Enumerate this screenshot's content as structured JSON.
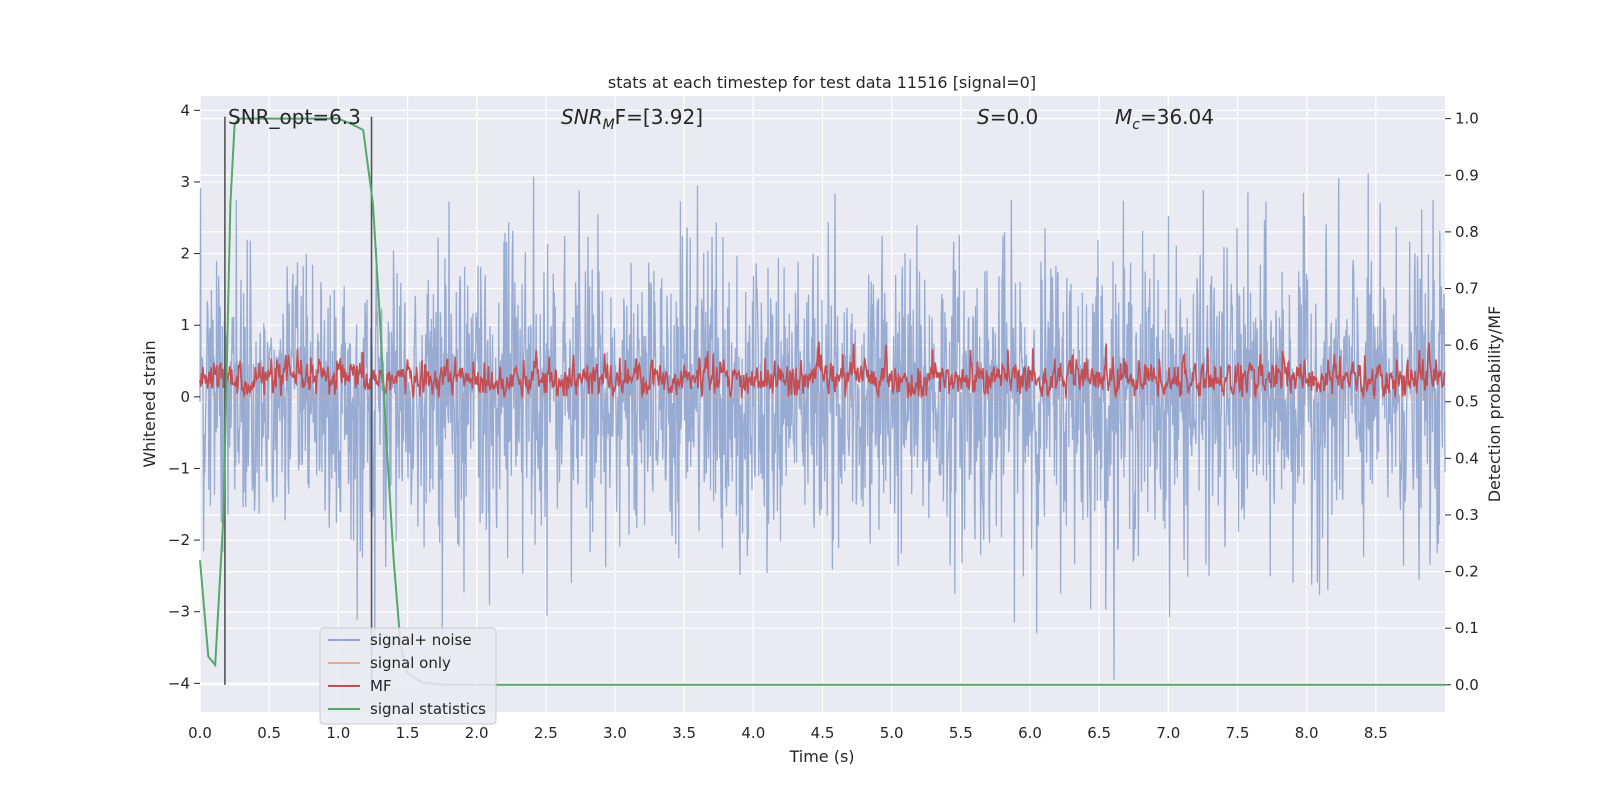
{
  "chart_data": {
    "type": "line",
    "title": "stats at each timestep for test data 11516 [signal=0]",
    "xlabel": "Time (s)",
    "ylabel": "Whitened strain",
    "ylabel_right": "Detection probability/MF",
    "xlim": [
      0.0,
      9.0
    ],
    "ylim": [
      -4.4,
      4.2
    ],
    "ylim_right": [
      -0.048,
      1.04
    ],
    "x_ticks": [
      "0.0",
      "0.5",
      "1.0",
      "1.5",
      "2.0",
      "2.5",
      "3.0",
      "3.5",
      "4.0",
      "4.5",
      "5.0",
      "5.5",
      "6.0",
      "6.5",
      "7.0",
      "7.5",
      "8.0",
      "8.5"
    ],
    "y_ticks": [
      "−4",
      "−3",
      "−2",
      "−1",
      "0",
      "1",
      "2",
      "3",
      "4"
    ],
    "y_right_ticks": [
      "0.0",
      "0.1",
      "0.2",
      "0.3",
      "0.4",
      "0.5",
      "0.6",
      "0.7",
      "0.8",
      "0.9",
      "1.0"
    ],
    "grid": true,
    "legend_position": "lower-left",
    "annotations": {
      "snr_opt": "SNR_opt=6.3",
      "snr_mf_base": "SNR",
      "snr_mf_sub": "M",
      "snr_mf_rest": "F=[3.92]",
      "s_italic": "S",
      "s_value": "=0.0",
      "mc_base": "M",
      "mc_sub": "c",
      "mc_value": "=36.04"
    },
    "vertical_markers": [
      0.18,
      1.24
    ],
    "series": [
      {
        "name": "signal+ noise",
        "color": "#92a8d1",
        "axis": "left",
        "description_range": [
          -3.9,
          3.9
        ],
        "envelope_rms": 1.0
      },
      {
        "name": "signal only",
        "color": "#e8a48c",
        "axis": "left",
        "values": "zero"
      },
      {
        "name": "MF",
        "color": "#c44e52",
        "axis": "right",
        "range": [
          0.5,
          0.63
        ],
        "mean": 0.54
      },
      {
        "name": "signal statistics",
        "color": "#55a868",
        "axis": "right",
        "x": [
          0.0,
          0.06,
          0.11,
          0.17,
          0.22,
          0.25,
          0.28,
          1.0,
          1.05,
          1.1,
          1.18,
          1.25,
          1.3,
          1.35,
          1.4,
          1.45,
          1.5,
          1.6,
          1.7,
          1.8,
          1.9,
          2.0,
          9.0
        ],
        "y": [
          0.22,
          0.05,
          0.035,
          0.3,
          0.85,
          0.99,
          1.0,
          1.0,
          0.995,
          0.99,
          0.98,
          0.85,
          0.65,
          0.42,
          0.22,
          0.07,
          0.02,
          0.005,
          0.001,
          0.0,
          0.0,
          0.0,
          0.0
        ]
      }
    ]
  },
  "colors": {
    "plot_bg": "#eaeaf2",
    "grid": "#ffffff",
    "noise": "#92a8d1",
    "signal": "#e8a48c",
    "mf": "#c44e52",
    "stat": "#55a868",
    "marker": "#555555"
  }
}
